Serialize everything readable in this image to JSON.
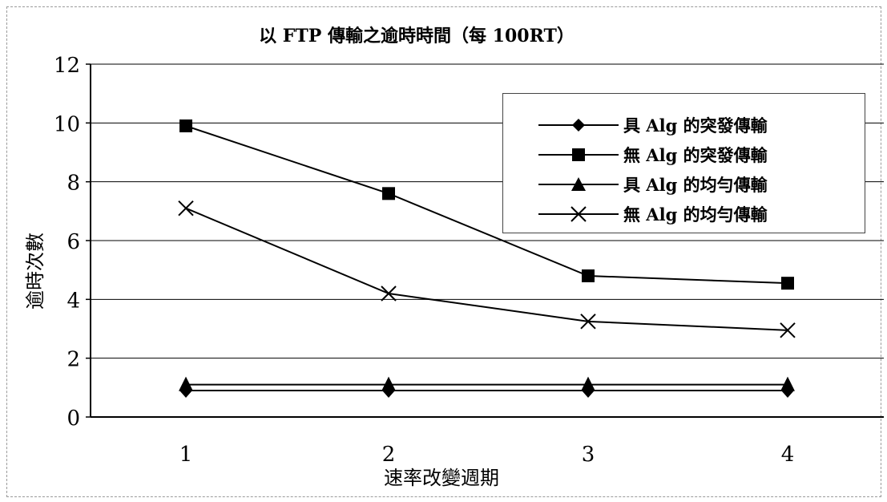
{
  "chart_data": {
    "type": "line",
    "title": "以 FTP 傳輸之逾時時間（每 100RT）",
    "xlabel": "速率改變週期",
    "ylabel": "逾時次數",
    "x": [
      1,
      2,
      3,
      4
    ],
    "x_tick_labels": [
      "1",
      "2",
      "3",
      "4"
    ],
    "ylim": [
      0,
      12
    ],
    "y_ticks": [
      0,
      2,
      4,
      6,
      8,
      10,
      12
    ],
    "grid": "horizontal",
    "legend_position": "top-right",
    "series": [
      {
        "name": "具 Alg 的突發傳輸",
        "marker": "diamond",
        "values": [
          0.9,
          0.9,
          0.9,
          0.9
        ]
      },
      {
        "name": "無 Alg 的突發傳輸",
        "marker": "square",
        "values": [
          9.9,
          7.6,
          4.8,
          4.55
        ]
      },
      {
        "name": "具 Alg 的均勻傳輸",
        "marker": "triangle",
        "values": [
          1.1,
          1.1,
          1.1,
          1.1
        ]
      },
      {
        "name": "無 Alg 的均勻傳輸",
        "marker": "x",
        "values": [
          7.1,
          4.2,
          3.25,
          2.95
        ]
      }
    ]
  }
}
